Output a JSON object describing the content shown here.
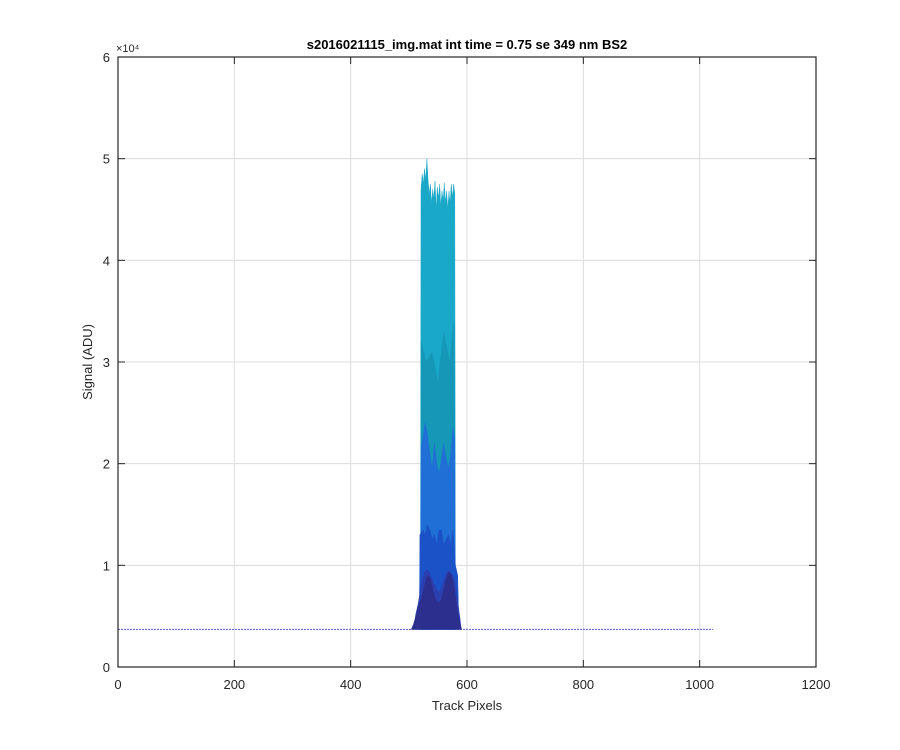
{
  "chart_data": {
    "type": "area",
    "title": "s2016021115_img.mat int time = 0.75 se  349 nm BS2",
    "xlabel": "Track Pixels",
    "ylabel": "Signal (ADU)",
    "y_exponent_label": "×10⁴",
    "xlim": [
      0,
      1200
    ],
    "ylim": [
      0,
      60000
    ],
    "x_ticks": [
      0,
      200,
      400,
      600,
      800,
      1000,
      1200
    ],
    "x_tick_labels": [
      "0",
      "200",
      "400",
      "600",
      "800",
      "1000",
      "1200"
    ],
    "y_ticks": [
      0,
      10000,
      20000,
      30000,
      40000,
      50000,
      60000
    ],
    "y_tick_labels": [
      "0",
      "1",
      "2",
      "3",
      "4",
      "5",
      "6"
    ],
    "grid": true,
    "baseline": {
      "x": [
        0,
        1023
      ],
      "y": 3700,
      "color": "#5a5ad0"
    },
    "layers": [
      {
        "color": "#1aa8c8",
        "x": [
          520,
          521,
          523,
          525,
          527,
          529,
          531,
          533,
          535,
          537,
          539,
          541,
          543,
          545,
          547,
          549,
          551,
          553,
          555,
          557,
          559,
          561,
          563,
          565,
          567,
          569,
          571,
          573,
          575,
          577,
          579,
          580
        ],
        "y": [
          3700,
          47000,
          48500,
          47500,
          49000,
          47800,
          50000,
          48000,
          46500,
          47500,
          45500,
          47000,
          46000,
          47800,
          45000,
          47200,
          46000,
          47500,
          45200,
          46800,
          45800,
          47600,
          45500,
          46800,
          45000,
          46800,
          45500,
          47500,
          46000,
          47500,
          46500,
          3700
        ]
      },
      {
        "color": "#1597b8",
        "x": [
          520,
          521,
          530,
          540,
          550,
          560,
          570,
          578,
          580
        ],
        "y": [
          3700,
          32000,
          30000,
          31000,
          28000,
          33000,
          30000,
          34000,
          3700
        ]
      },
      {
        "color": "#1f6fd6",
        "x": [
          520,
          521,
          524,
          528,
          532,
          536,
          540,
          544,
          548,
          552,
          556,
          560,
          564,
          568,
          572,
          576,
          579,
          580
        ],
        "y": [
          3700,
          21500,
          22500,
          24000,
          23000,
          21000,
          19500,
          22000,
          20000,
          19000,
          20500,
          22000,
          20500,
          19500,
          21000,
          23500,
          22500,
          3700
        ]
      },
      {
        "color": "#1c52c8",
        "x": [
          518,
          519,
          524,
          528,
          532,
          536,
          540,
          544,
          548,
          552,
          556,
          560,
          564,
          568,
          572,
          576,
          580,
          584,
          586
        ],
        "y": [
          3700,
          13000,
          13500,
          13000,
          14000,
          13500,
          12500,
          13000,
          12000,
          13500,
          13500,
          12000,
          12500,
          13000,
          12000,
          13500,
          10000,
          9000,
          3700
        ]
      },
      {
        "color": "#2a3fb0",
        "x": [
          508,
          512,
          516,
          520,
          524,
          528,
          532,
          536,
          540,
          544,
          548,
          552,
          556,
          560,
          564,
          568,
          572,
          576,
          580,
          584,
          588,
          590
        ],
        "y": [
          3700,
          5200,
          6200,
          7600,
          8800,
          9400,
          9600,
          9200,
          8600,
          8100,
          7600,
          7400,
          7800,
          8500,
          9200,
          9500,
          9300,
          9000,
          8200,
          6400,
          4800,
          3700
        ]
      },
      {
        "color": "#2c2f8e",
        "x": [
          504,
          508,
          512,
          516,
          520,
          524,
          528,
          532,
          536,
          540,
          544,
          548,
          552,
          556,
          560,
          564,
          568,
          572,
          576,
          580,
          584,
          588,
          591
        ],
        "y": [
          3700,
          4200,
          5000,
          5800,
          6500,
          7200,
          8200,
          9000,
          8800,
          8000,
          7000,
          6400,
          6300,
          6700,
          7600,
          8600,
          9300,
          9200,
          8400,
          7000,
          5300,
          4200,
          3700
        ]
      }
    ]
  }
}
